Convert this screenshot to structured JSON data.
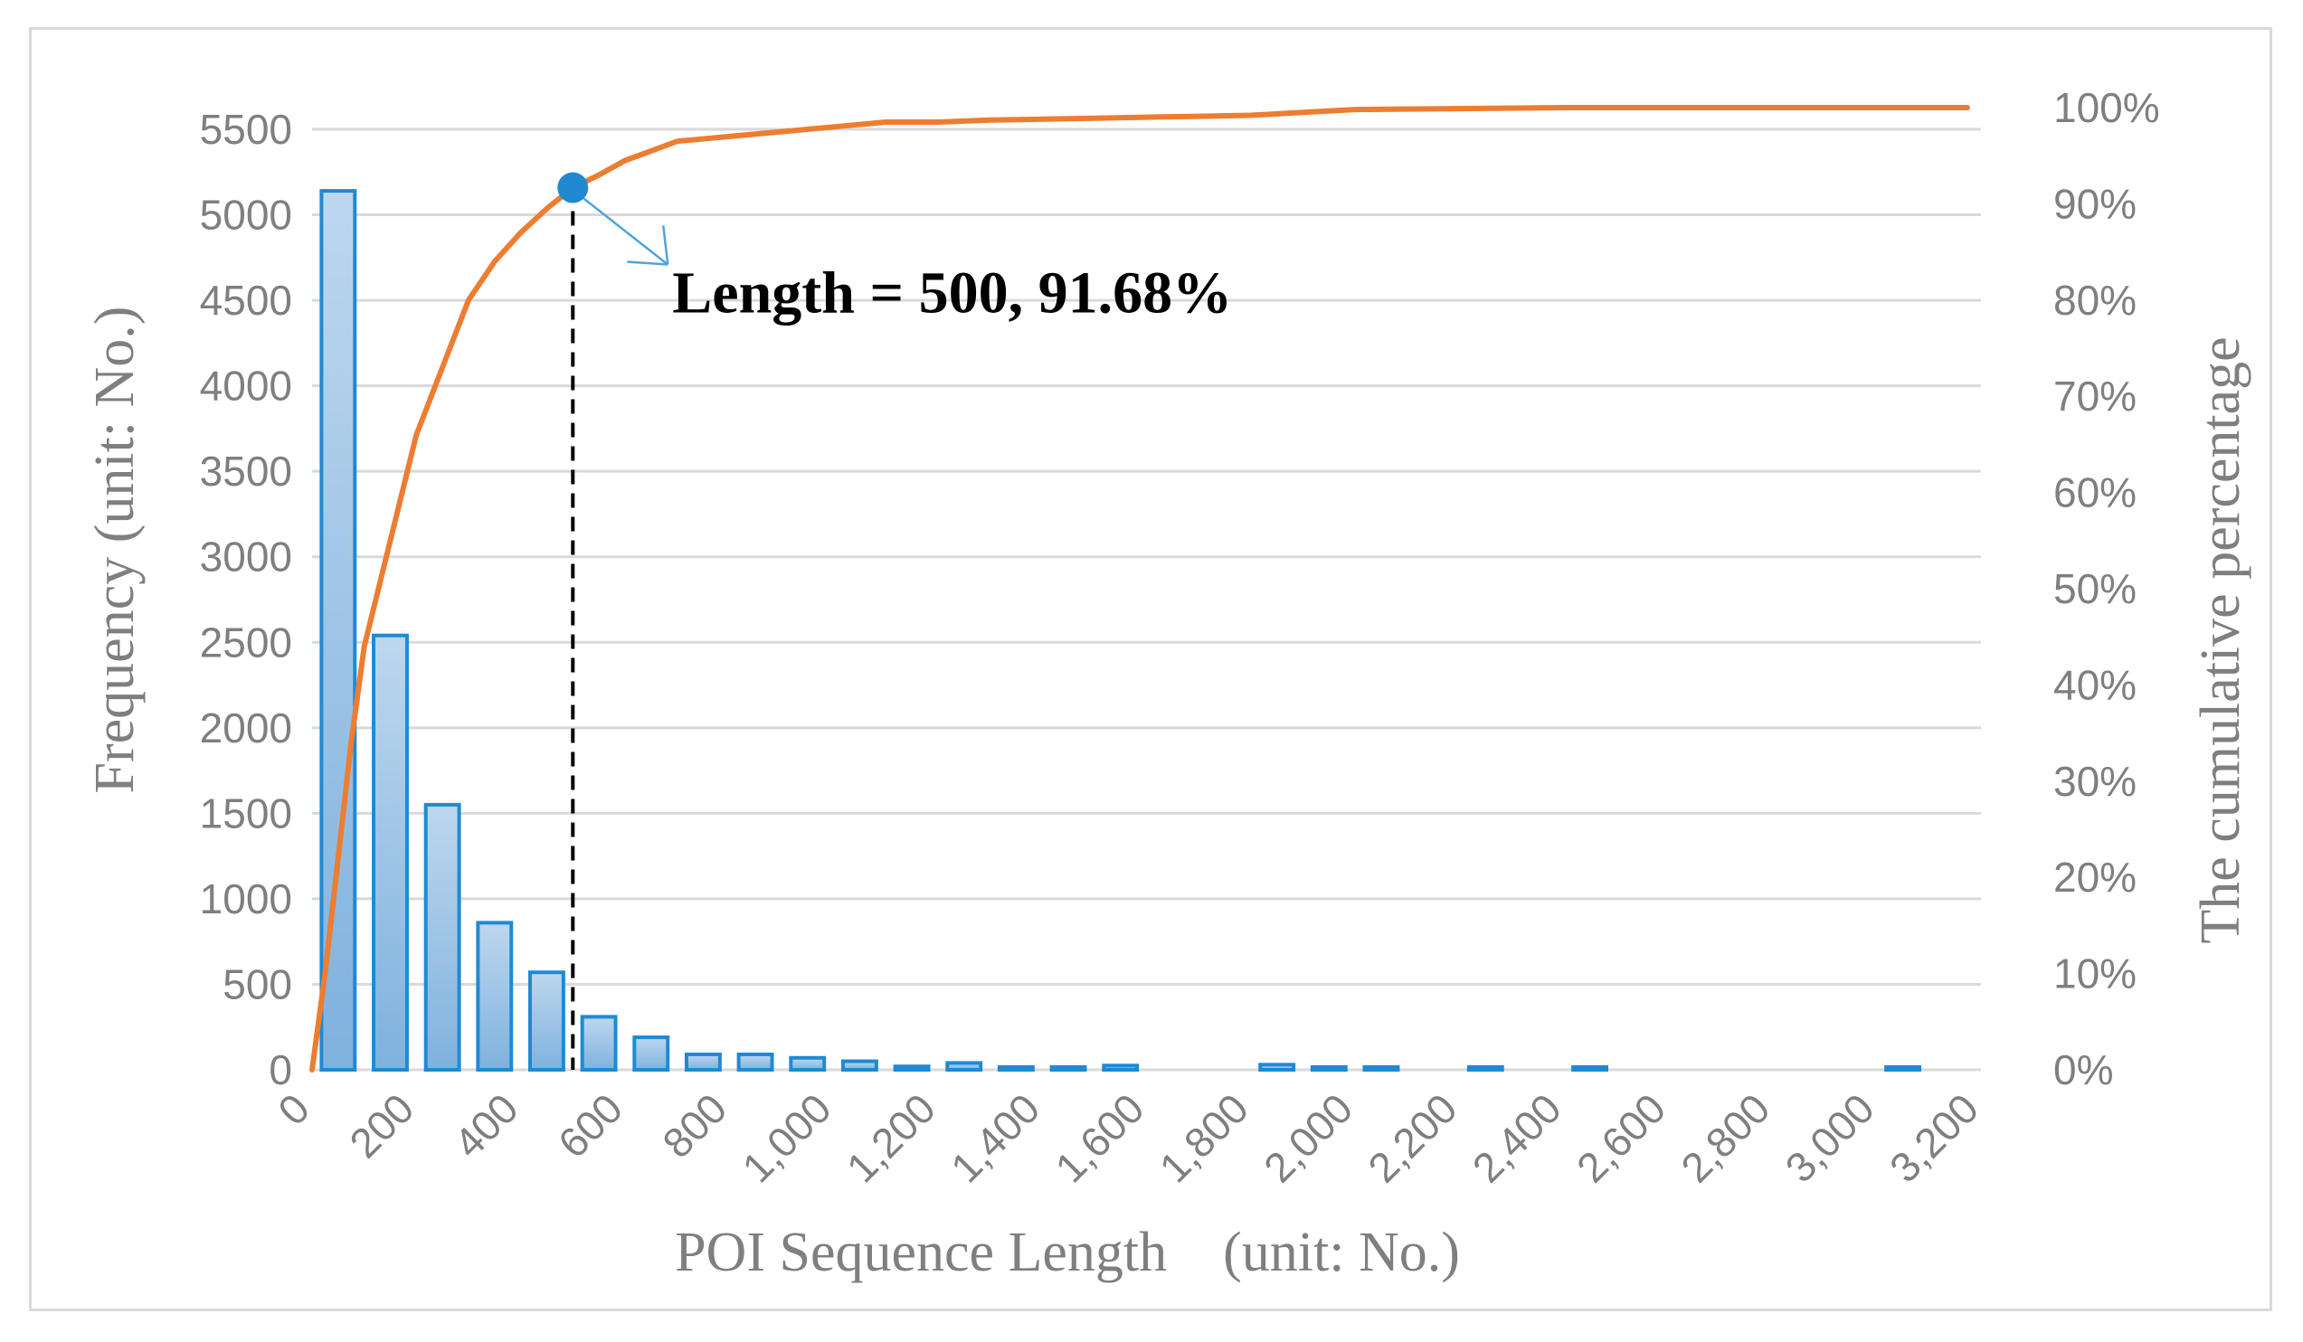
{
  "chart_data": {
    "type": "bar",
    "title": "",
    "xlabel": "POI Sequence Length　(unit: No.)",
    "ylabel": "Frequency (unit: No.)",
    "y2label": "The cumulative percentage",
    "xlim": [
      0,
      3200
    ],
    "ylim": [
      0,
      5500
    ],
    "y2lim": [
      0,
      1.0
    ],
    "bin_width": 100,
    "grid": true,
    "legend": "none",
    "x_ticks": [
      "0",
      "200",
      "400",
      "600",
      "800",
      "1,000",
      "1,200",
      "1,400",
      "1,600",
      "1,800",
      "2,000",
      "2,200",
      "2,400",
      "2,600",
      "2,800",
      "3,000",
      "3,200"
    ],
    "y_ticks": [
      "0",
      "500",
      "1000",
      "1500",
      "2000",
      "2500",
      "3000",
      "3500",
      "4000",
      "4500",
      "5000",
      "5500"
    ],
    "y2_ticks": [
      "0%",
      "10%",
      "20%",
      "30%",
      "40%",
      "50%",
      "60%",
      "70%",
      "80%",
      "90%",
      "100%"
    ],
    "series": [
      {
        "type": "bar",
        "axis": "left",
        "x": [
          100,
          200,
          300,
          400,
          500,
          600,
          700,
          800,
          900,
          1000,
          1100,
          1200,
          1300,
          1400,
          1500,
          1600,
          1700,
          1800,
          1900,
          2000,
          2100,
          2200,
          2300,
          2400,
          2500,
          2600,
          2700,
          2800,
          2900,
          3000,
          3100,
          3200
        ],
        "values": [
          5140,
          2540,
          1550,
          860,
          570,
          310,
          190,
          90,
          90,
          70,
          50,
          20,
          40,
          15,
          15,
          25,
          0,
          0,
          30,
          15,
          15,
          0,
          15,
          0,
          15,
          0,
          0,
          0,
          0,
          0,
          15,
          0
        ]
      },
      {
        "type": "line",
        "axis": "right",
        "x": [
          0,
          25,
          50,
          75,
          100,
          150,
          200,
          250,
          300,
          350,
          400,
          450,
          500,
          550,
          600,
          650,
          700,
          800,
          900,
          1000,
          1100,
          1200,
          1300,
          1400,
          1500,
          1600,
          1700,
          1800,
          1900,
          2000,
          2200,
          2400,
          2600,
          2800,
          3000,
          3200,
          3500
        ],
        "values": [
          0.0,
          0.1,
          0.22,
          0.34,
          0.44,
          0.55,
          0.66,
          0.73,
          0.8,
          0.84,
          0.87,
          0.895,
          0.9168,
          0.93,
          0.945,
          0.955,
          0.965,
          0.97,
          0.975,
          0.98,
          0.985,
          0.985,
          0.987,
          0.988,
          0.989,
          0.99,
          0.991,
          0.992,
          0.995,
          0.998,
          0.999,
          1.0,
          1.0,
          1.0,
          1.0,
          1.0,
          1.0
        ]
      }
    ],
    "annotation": {
      "text": "Length = 500, 91.68%",
      "x": 500,
      "y2": 0.9168
    },
    "colors": {
      "bar_fill_top": "#bdd7ee",
      "bar_fill_bottom": "#7fb2de",
      "bar_stroke": "#1f8ad2",
      "line": "#ed7d31",
      "marker": "#1f8ad2",
      "grid": "#d9d9d9",
      "text": "#7f7f7f"
    }
  }
}
